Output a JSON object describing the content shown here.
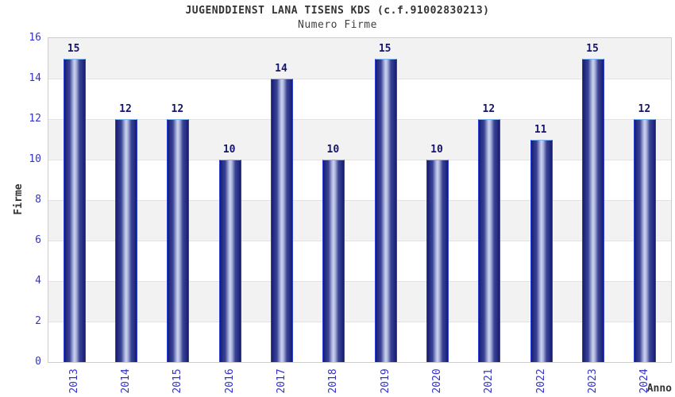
{
  "chart_data": {
    "type": "bar",
    "title": "JUGENDDIENST LANA TISENS KDS (c.f.91002830213)",
    "subtitle": "Numero Firme",
    "xlabel": "Anno",
    "ylabel": "Firme",
    "categories": [
      "2013",
      "2014",
      "2015",
      "2016",
      "2017",
      "2018",
      "2019",
      "2020",
      "2021",
      "2022",
      "2023",
      "2024"
    ],
    "values": [
      15,
      12,
      12,
      10,
      14,
      10,
      15,
      10,
      12,
      11,
      15,
      12
    ],
    "ylim": [
      0,
      16
    ],
    "ytick_step": 2,
    "ytick_labels": [
      "0",
      "2",
      "4",
      "6",
      "8",
      "10",
      "12",
      "14",
      "16"
    ],
    "legend": "none",
    "grid": "horizontal-bands-alternating",
    "colors": {
      "bar_edge": "#161b6e",
      "bar_inner": "#3a4494",
      "bar_center": "#ccd3ee",
      "bar_border_side": "#2e43d4",
      "bar_border_top": "#7fb2f0",
      "value_label": "#15156e",
      "tick_label": "#3333cc",
      "band_gray": "#f2f2f2",
      "band_white": "#ffffff",
      "gridline": "#e2e2e2",
      "plot_border": "#cccccc",
      "text": "#333333"
    }
  }
}
